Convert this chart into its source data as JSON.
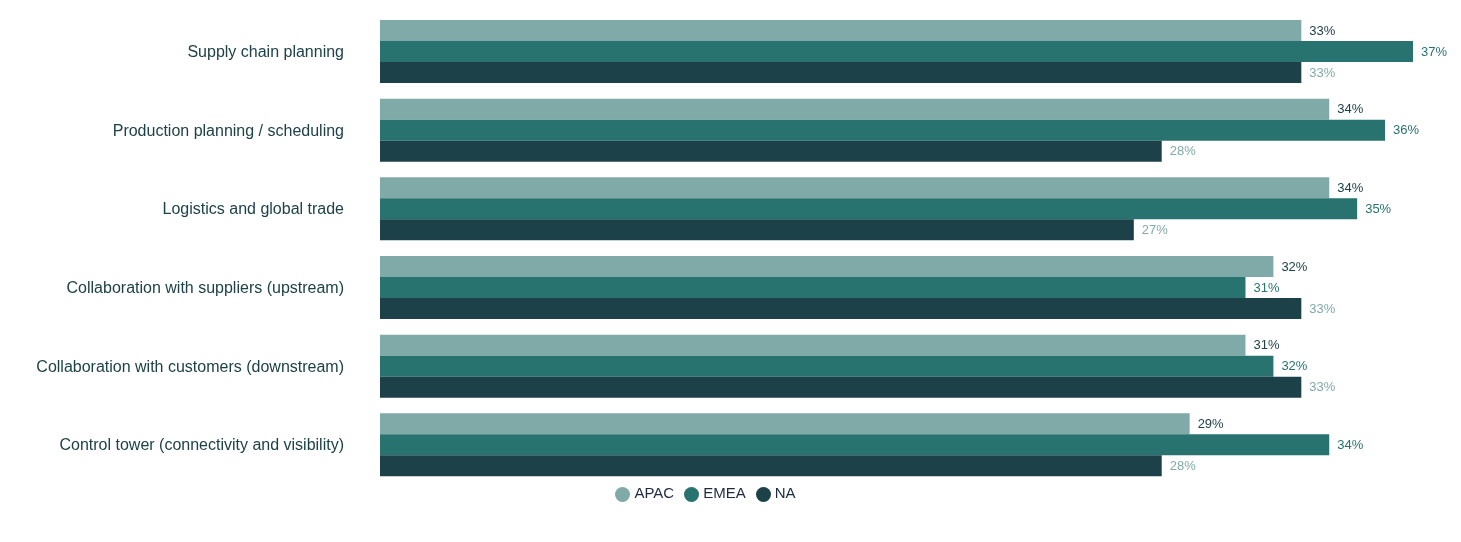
{
  "chart_data": {
    "type": "bar",
    "orientation": "horizontal",
    "categories": [
      "Supply chain planning",
      "Production planning / scheduling",
      "Logistics and global trade",
      "Collaboration with suppliers (upstream)",
      "Collaboration with customers (downstream)",
      "Control tower (connectivity and visibility)"
    ],
    "series": [
      {
        "name": "APAC",
        "color": "#80aaa8",
        "values": [
          33,
          34,
          34,
          32,
          31,
          29
        ],
        "value_labels": [
          "33%",
          "34%",
          "34%",
          "32%",
          "31%",
          "29%"
        ]
      },
      {
        "name": "EMEA",
        "color": "#287370",
        "values": [
          37,
          36,
          35,
          31,
          32,
          34
        ],
        "value_labels": [
          "37%",
          "36%",
          "35%",
          "31%",
          "32%",
          "34%"
        ]
      },
      {
        "name": "NA",
        "color": "#1d4148",
        "values": [
          33,
          28,
          27,
          33,
          33,
          28
        ],
        "value_labels": [
          "33%",
          "28%",
          "27%",
          "33%",
          "33%",
          "28%"
        ]
      }
    ],
    "legend": "bottom"
  }
}
